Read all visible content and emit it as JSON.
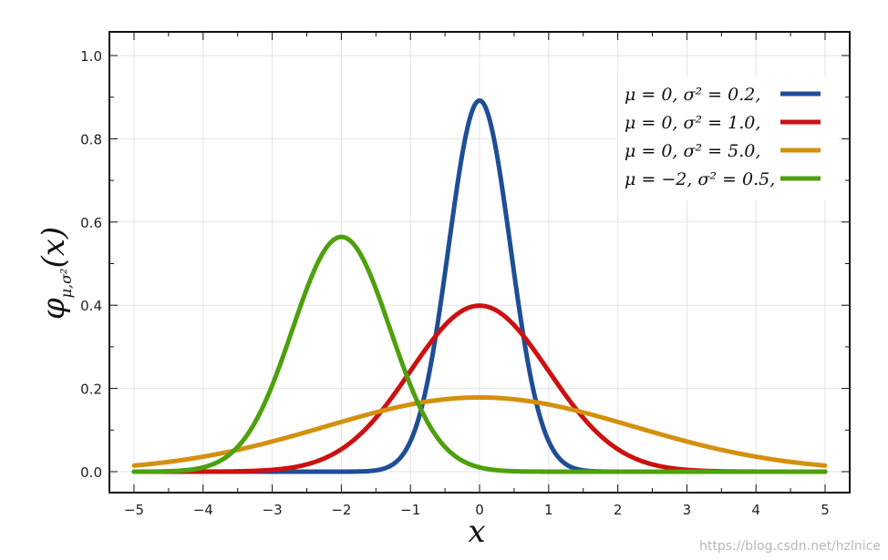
{
  "chart_data": {
    "type": "line",
    "title": "",
    "xlabel": "x",
    "ylabel": "φμ,σ²(x)",
    "xlim": [
      -5,
      5
    ],
    "ylim": [
      0,
      1.0
    ],
    "xticks": [
      "−5",
      "−4",
      "−3",
      "−2",
      "−1",
      "0",
      "1",
      "2",
      "3",
      "4",
      "5"
    ],
    "yticks": [
      "0.0",
      "0.2",
      "0.4",
      "0.6",
      "0.8",
      "1.0"
    ],
    "grid": true,
    "legend_position": "top-right",
    "series": [
      {
        "name": "μ = 0,    σ² = 0.2,",
        "mu": 0,
        "sigma2": 0.2,
        "color": "#1f4e96"
      },
      {
        "name": "μ = 0,    σ² = 1.0,",
        "mu": 0,
        "sigma2": 1.0,
        "color": "#cc1111"
      },
      {
        "name": "μ = 0,    σ² = 5.0,",
        "mu": 0,
        "sigma2": 5.0,
        "color": "#d4900e"
      },
      {
        "name": "μ = −2,  σ² = 0.5,",
        "mu": -2,
        "sigma2": 0.5,
        "color": "#4ea00e"
      }
    ]
  },
  "watermark": "https://blog.csdn.net/hzlnice"
}
